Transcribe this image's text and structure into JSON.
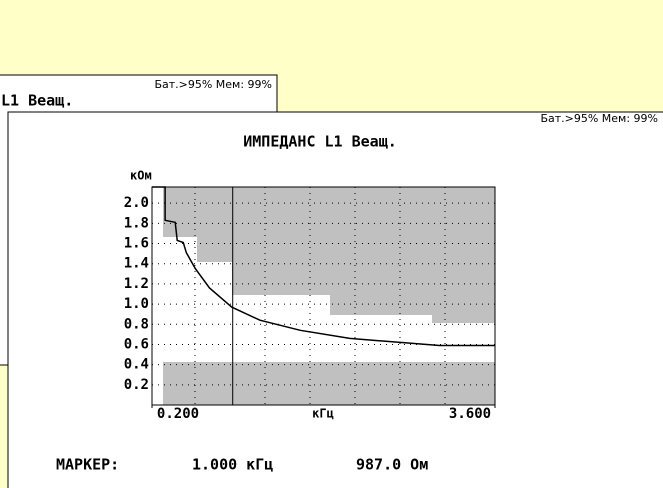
{
  "back_window": {
    "status": "Бат.>95% Мем: 99%",
    "title": "L1 Веащ."
  },
  "status": "Бат.>95% Мем: 99%",
  "chart_data": {
    "type": "line",
    "title": "ИМПЕДАНС  L1 Веащ.",
    "y_label": "кОм",
    "x_label": "кГц",
    "x": [
      0.2,
      0.33,
      0.33,
      0.43,
      0.45,
      0.51,
      0.54,
      0.63,
      0.77,
      0.99,
      1.27,
      1.67,
      2.16,
      2.66,
      3.05,
      3.6
    ],
    "values": [
      2.16,
      2.16,
      1.83,
      1.81,
      1.63,
      1.61,
      1.51,
      1.35,
      1.16,
      0.97,
      0.84,
      0.74,
      0.66,
      0.62,
      0.59,
      0.59
    ],
    "color": "#000000",
    "xlim": [
      0.2,
      3.6
    ],
    "xticks": [
      {
        "value": 0.2,
        "label": "0.200"
      },
      {
        "value": 3.6,
        "label": "3.600"
      }
    ],
    "ylim": [
      0,
      2.16
    ],
    "yticks": [
      0.2,
      0.4,
      0.6,
      0.8,
      {
        "value": 1,
        "label": "1.0"
      },
      1.2,
      1.4,
      1.6,
      1.8,
      {
        "value": 2,
        "label": "2.0"
      }
    ],
    "grid": true,
    "marker_x": 1.0
  },
  "marker": {
    "label": "МАРКЕР:",
    "frequency": "1.000 кГц",
    "impedance": "987.0 Ом"
  }
}
